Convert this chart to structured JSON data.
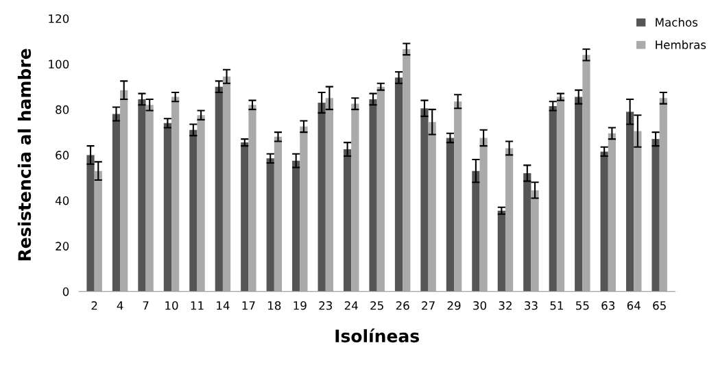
{
  "chart_data": {
    "type": "bar",
    "xlabel": "Isolíneas",
    "ylabel": "Resistencia al hambre",
    "categories": [
      "2",
      "4",
      "7",
      "10",
      "11",
      "14",
      "17",
      "18",
      "19",
      "23",
      "24",
      "25",
      "26",
      "27",
      "29",
      "30",
      "32",
      "33",
      "51",
      "55",
      "63",
      "64",
      "65"
    ],
    "series": [
      {
        "name": "Machos",
        "color": "#555555",
        "values": [
          60,
          78,
          84.5,
          74,
          71,
          90,
          65.5,
          58.5,
          57.5,
          83,
          62.5,
          84.5,
          94,
          80.5,
          67.5,
          53,
          35.5,
          52,
          81.5,
          85.5,
          61.5,
          79,
          67
        ],
        "errors": [
          4,
          3,
          2.5,
          2,
          2.5,
          2.5,
          1.5,
          2,
          3,
          4.5,
          3,
          2.5,
          2.5,
          3.5,
          2,
          5,
          1.5,
          3.5,
          2,
          3,
          2,
          5.5,
          3
        ]
      },
      {
        "name": "Hembras",
        "color": "#aaaaaa",
        "values": [
          53,
          88.5,
          82,
          85.5,
          77.5,
          94.5,
          82,
          68,
          72.5,
          85,
          82.5,
          90,
          106.5,
          74.5,
          83.5,
          67.5,
          63,
          44.5,
          85.5,
          104,
          69.5,
          70.5,
          85
        ],
        "errors": [
          4,
          4,
          2.5,
          2,
          2,
          3,
          2,
          2,
          2.5,
          5,
          2.5,
          1.5,
          2.5,
          5.5,
          3,
          3.5,
          3,
          3.5,
          1.5,
          2.5,
          2.5,
          7,
          2.5
        ]
      }
    ],
    "ylim": [
      0,
      120
    ],
    "yticks": [
      0,
      20,
      40,
      60,
      80,
      100,
      120
    ],
    "grid": false,
    "legend": "top right"
  }
}
